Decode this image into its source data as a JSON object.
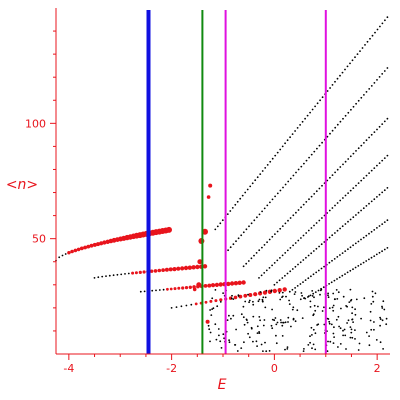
{
  "colors": {
    "axis": "#e8141c",
    "dots": "#000000",
    "highlight": "#e8141c",
    "line_blue": "#1010e0",
    "line_green": "#108a10",
    "line_magenta": "#e010e0"
  },
  "chart_data": {
    "type": "scatter",
    "xlabel": "E",
    "ylabel": "<n>",
    "xlim": [
      -4.25,
      2.25
    ],
    "ylim": [
      0,
      150
    ],
    "x_ticks": [
      {
        "value": -4,
        "label": "-4"
      },
      {
        "value": -2,
        "label": "-2"
      },
      {
        "value": 0,
        "label": "0"
      },
      {
        "value": 2,
        "label": "2"
      }
    ],
    "y_ticks": [
      {
        "value": 50,
        "label": "50"
      },
      {
        "value": 100,
        "label": "100"
      }
    ],
    "grid": false,
    "vertical_lines": [
      {
        "x": -2.45,
        "color": "line_blue",
        "width": "thick"
      },
      {
        "x": -1.4,
        "color": "line_green",
        "width": "thin"
      },
      {
        "x": -0.95,
        "color": "line_magenta",
        "width": "thin"
      },
      {
        "x": 1.0,
        "color": "line_magenta",
        "width": "thin"
      }
    ],
    "branches": [
      {
        "x_start": -4.25,
        "x_end": -2.05,
        "y_start": 40.5,
        "y_end": 53.8,
        "curvature": 1.6,
        "points": 36,
        "highlight_from": -4.0
      },
      {
        "x_start": -3.5,
        "x_end": -1.35,
        "y_start": 33,
        "y_end": 38,
        "curvature": 1.2,
        "points": 30,
        "highlight_from": -2.8
      },
      {
        "x_start": -2.6,
        "x_end": -0.6,
        "y_start": 27,
        "y_end": 31,
        "curvature": 1.0,
        "points": 28,
        "highlight_from": -2.1
      },
      {
        "x_start": -2.0,
        "x_end": 0.2,
        "y_start": 20,
        "y_end": 28,
        "curvature": 0.6,
        "points": 24,
        "highlight_from": -1.6
      },
      {
        "x_start": -1.15,
        "x_end": 2.2,
        "y_start": 54,
        "y_end": 146,
        "curvature": 0.15,
        "points": 70,
        "highlight_from": 9
      },
      {
        "x_start": -0.9,
        "x_end": 2.2,
        "y_start": 45,
        "y_end": 124,
        "curvature": 0.15,
        "points": 62,
        "highlight_from": 9
      },
      {
        "x_start": -0.6,
        "x_end": 2.2,
        "y_start": 38,
        "y_end": 102,
        "curvature": 0.15,
        "points": 56,
        "highlight_from": 9
      },
      {
        "x_start": -0.3,
        "x_end": 2.2,
        "y_start": 33,
        "y_end": 86,
        "curvature": 0.15,
        "points": 50,
        "highlight_from": 9
      },
      {
        "x_start": 0.0,
        "x_end": 2.2,
        "y_start": 30,
        "y_end": 72,
        "curvature": 0.15,
        "points": 44,
        "highlight_from": 9
      },
      {
        "x_start": 0.3,
        "x_end": 2.2,
        "y_start": 27,
        "y_end": 58,
        "curvature": 0.15,
        "points": 38,
        "highlight_from": 9
      },
      {
        "x_start": 0.6,
        "x_end": 2.2,
        "y_start": 24,
        "y_end": 46,
        "curvature": 0.15,
        "points": 32,
        "highlight_from": 9
      }
    ],
    "cloud": {
      "x_range": [
        -1.3,
        2.2
      ],
      "y_range": [
        1,
        28
      ],
      "count": 260
    },
    "highlight_points": [
      {
        "x": -1.35,
        "y": 53,
        "size": 3
      },
      {
        "x": -1.42,
        "y": 49,
        "size": 3
      },
      {
        "x": -1.45,
        "y": 40,
        "size": 2.5
      },
      {
        "x": -1.47,
        "y": 30,
        "size": 2.5
      },
      {
        "x": -1.25,
        "y": 73,
        "size": 2
      },
      {
        "x": -1.28,
        "y": 68,
        "size": 1.8
      },
      {
        "x": -1.3,
        "y": 14,
        "size": 2
      },
      {
        "x": -1.55,
        "y": 28,
        "size": 1.8
      },
      {
        "x": -1.2,
        "y": 30,
        "size": 1.6
      }
    ]
  }
}
